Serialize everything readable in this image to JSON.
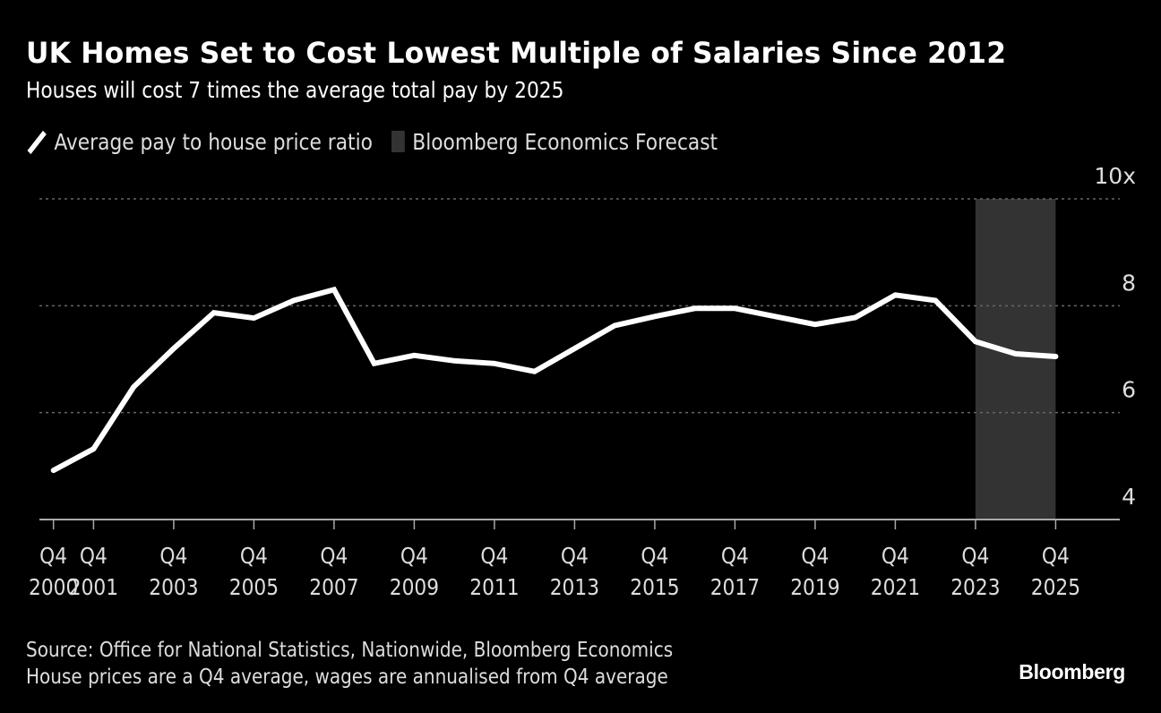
{
  "header": {
    "title": "UK Homes Set to Cost Lowest Multiple of Salaries Since 2012",
    "subtitle": "Houses will cost 7 times the average total pay by 2025"
  },
  "legend": {
    "items": [
      {
        "label": "Average pay to house price ratio",
        "icon": "line-swatch-icon",
        "color": "#ffffff"
      },
      {
        "label": "Bloomberg Economics Forecast",
        "icon": "shaded-box-icon",
        "color": "#333333"
      }
    ]
  },
  "footer": {
    "source": "Source: Office for National Statistics, Nationwide, Bloomberg Economics",
    "note": "House prices are a Q4 average, wages are annualised from Q4 average",
    "brand": "Bloomberg"
  },
  "colors": {
    "background": "#000000",
    "line": "#ffffff",
    "forecast_shade": "#333333",
    "grid": "#666666",
    "axis": "#aaaaaa",
    "text": "#dddddd"
  },
  "chart_data": {
    "type": "line",
    "title": "UK Homes Set to Cost Lowest Multiple of Salaries Since 2012",
    "subtitle": "Houses will cost 7 times the average total pay by 2025",
    "xlabel": "",
    "ylabel": "",
    "x": [
      2000,
      2001,
      2002,
      2003,
      2004,
      2005,
      2006,
      2007,
      2008,
      2009,
      2010,
      2011,
      2012,
      2013,
      2014,
      2015,
      2016,
      2017,
      2018,
      2019,
      2020,
      2021,
      2022,
      2023,
      2024,
      2025
    ],
    "series": [
      {
        "name": "Average pay to house price ratio",
        "values": [
          4.92,
          5.32,
          6.48,
          7.2,
          7.87,
          7.77,
          8.1,
          8.3,
          6.92,
          7.07,
          6.97,
          6.92,
          6.77,
          7.2,
          7.63,
          7.8,
          7.95,
          7.95,
          7.8,
          7.65,
          7.78,
          8.2,
          8.1,
          7.33,
          7.1,
          7.05
        ]
      }
    ],
    "forecast_range": {
      "label": "Bloomberg Economics Forecast",
      "start": 2023,
      "end": 2025
    },
    "xlim": [
      1999.65,
      2026.6
    ],
    "ylim": [
      4,
      10
    ],
    "yticks": [
      {
        "value": 4,
        "label": "4"
      },
      {
        "value": 6,
        "label": "6"
      },
      {
        "value": 8,
        "label": "8"
      },
      {
        "value": 10,
        "label": "10x"
      }
    ],
    "xticks": [
      {
        "value": 2000,
        "line1": "Q4",
        "line2": "2000"
      },
      {
        "value": 2001,
        "line1": "Q4",
        "line2": "2001"
      },
      {
        "value": 2003,
        "line1": "Q4",
        "line2": "2003"
      },
      {
        "value": 2005,
        "line1": "Q4",
        "line2": "2005"
      },
      {
        "value": 2007,
        "line1": "Q4",
        "line2": "2007"
      },
      {
        "value": 2009,
        "line1": "Q4",
        "line2": "2009"
      },
      {
        "value": 2011,
        "line1": "Q4",
        "line2": "2011"
      },
      {
        "value": 2013,
        "line1": "Q4",
        "line2": "2013"
      },
      {
        "value": 2015,
        "line1": "Q4",
        "line2": "2015"
      },
      {
        "value": 2017,
        "line1": "Q4",
        "line2": "2017"
      },
      {
        "value": 2019,
        "line1": "Q4",
        "line2": "2019"
      },
      {
        "value": 2021,
        "line1": "Q4",
        "line2": "2021"
      },
      {
        "value": 2023,
        "line1": "Q4",
        "line2": "2023"
      },
      {
        "value": 2025,
        "line1": "Q4",
        "line2": "2025"
      }
    ],
    "grid": true,
    "gridlines_at": [
      6,
      8,
      10
    ],
    "legend_position": "top-left"
  }
}
